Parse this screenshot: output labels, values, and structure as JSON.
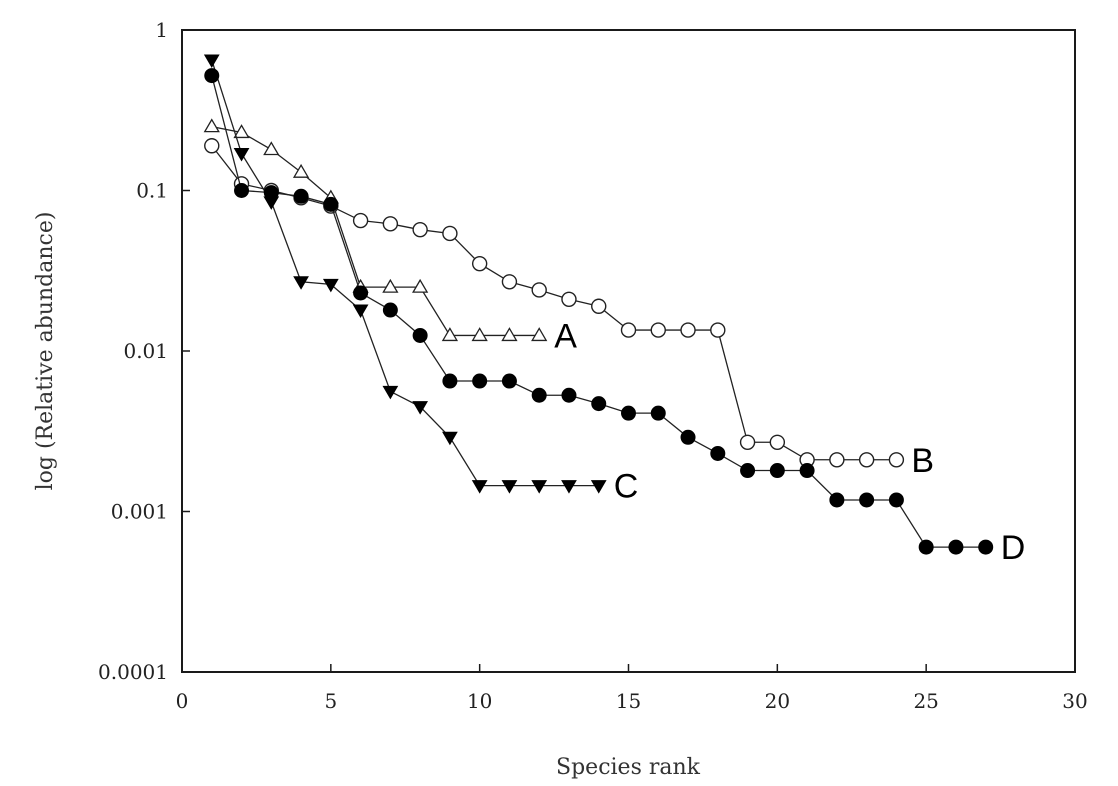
{
  "chart_data": {
    "type": "line",
    "title": "",
    "xlabel": "Species rank",
    "ylabel": "log (Relative abundance)",
    "xlim": [
      0,
      30
    ],
    "ylim": [
      0.0001,
      1
    ],
    "y_scale": "log",
    "grid": false,
    "x_ticks": [
      0,
      5,
      10,
      15,
      20,
      25,
      30
    ],
    "x_tick_labels": [
      "0",
      "5",
      "10",
      "15",
      "20",
      "25",
      "30"
    ],
    "y_ticks": [
      0.0001,
      0.001,
      0.01,
      0.1,
      1
    ],
    "y_tick_labels": [
      "0.0001",
      "0.001",
      "0.01",
      "0.1",
      "1"
    ],
    "series": [
      {
        "name": "A",
        "marker": "open-triangle-up",
        "x": [
          1,
          2,
          3,
          4,
          5,
          6,
          7,
          8,
          9,
          10,
          11,
          12
        ],
        "y": [
          0.25,
          0.23,
          0.18,
          0.13,
          0.09,
          0.025,
          0.025,
          0.025,
          0.0125,
          0.0125,
          0.0125,
          0.0125
        ]
      },
      {
        "name": "B",
        "marker": "open-circle",
        "x": [
          1,
          2,
          3,
          4,
          5,
          6,
          7,
          8,
          9,
          10,
          11,
          12,
          13,
          14,
          15,
          16,
          17,
          18,
          19,
          20,
          21,
          22,
          23,
          24
        ],
        "y": [
          0.19,
          0.11,
          0.1,
          0.09,
          0.08,
          0.065,
          0.062,
          0.057,
          0.054,
          0.035,
          0.027,
          0.024,
          0.021,
          0.019,
          0.0135,
          0.0135,
          0.0135,
          0.0135,
          0.0027,
          0.0027,
          0.0021,
          0.0021,
          0.0021,
          0.0021
        ]
      },
      {
        "name": "C",
        "marker": "filled-triangle-down",
        "x": [
          1,
          2,
          3,
          4,
          5,
          6,
          7,
          8,
          9,
          10,
          11,
          12,
          13,
          14
        ],
        "y": [
          0.65,
          0.17,
          0.085,
          0.027,
          0.026,
          0.018,
          0.0056,
          0.0045,
          0.0029,
          0.00145,
          0.00145,
          0.00145,
          0.00145,
          0.00145
        ]
      },
      {
        "name": "D",
        "marker": "filled-circle",
        "x": [
          1,
          2,
          3,
          4,
          5,
          6,
          7,
          8,
          9,
          10,
          11,
          12,
          13,
          14,
          15,
          16,
          17,
          18,
          19,
          20,
          21,
          22,
          23,
          24,
          25,
          26,
          27
        ],
        "y": [
          0.52,
          0.1,
          0.097,
          0.092,
          0.082,
          0.023,
          0.018,
          0.0125,
          0.0065,
          0.0065,
          0.0065,
          0.0053,
          0.0053,
          0.0047,
          0.0041,
          0.0041,
          0.0029,
          0.0023,
          0.0018,
          0.0018,
          0.0018,
          0.00118,
          0.00118,
          0.00118,
          0.0006,
          0.0006,
          0.0006
        ]
      }
    ]
  }
}
